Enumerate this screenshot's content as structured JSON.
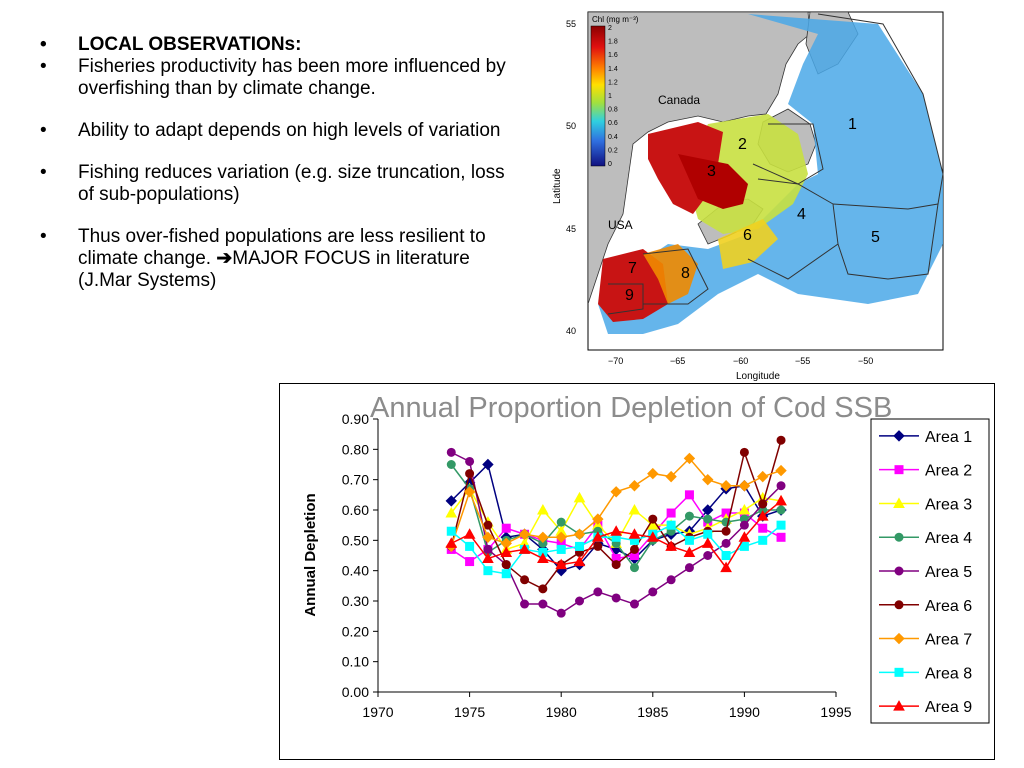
{
  "bullets": [
    {
      "text": "LOCAL OBSERVATIONs:",
      "bold": true
    },
    {
      "text": "Fisheries productivity has been more influenced by overfishing than by climate change."
    },
    {
      "text": "Ability to adapt depends on high levels of variation"
    },
    {
      "text": "Fishing reduces variation (e.g. size truncation, loss of sub-populations)"
    },
    {
      "text_before": "Thus over-fished populations are less resilient to climate change. ",
      "arrow": "➔",
      "text_after": "MAJOR FOCUS in literature (J.Mar Systems)"
    }
  ],
  "map": {
    "legend_title": "Chl (mg m⁻³)",
    "legend_ticks": [
      "2",
      "1.8",
      "1.6",
      "1.4",
      "1.2",
      "1",
      "0.8",
      "0.6",
      "0.4",
      "0.2",
      "0"
    ],
    "country_labels": [
      "Canada",
      "USA"
    ],
    "area_labels": [
      "1",
      "2",
      "3",
      "4",
      "5",
      "6",
      "7",
      "8",
      "9"
    ],
    "lat_ticks": [
      "55",
      "50",
      "45",
      "40"
    ],
    "lon_ticks": [
      "−70",
      "−65",
      "−60",
      "−55",
      "−50"
    ],
    "xlabel": "Longitude",
    "ylabel": "Latitude"
  },
  "chart_data": {
    "type": "line",
    "title": "Annual Proportion Depletion of Cod SSB",
    "xlabel": "",
    "ylabel": "Annual Depletion",
    "xlim": [
      1970,
      1995
    ],
    "ylim": [
      0,
      0.9
    ],
    "xticks": [
      "1970",
      "1975",
      "1980",
      "1985",
      "1990",
      "1995"
    ],
    "yticks": [
      "0.00",
      "0.10",
      "0.20",
      "0.30",
      "0.40",
      "0.50",
      "0.60",
      "0.70",
      "0.80",
      "0.90"
    ],
    "legend_position": "right",
    "series": [
      {
        "name": "Area 1",
        "color": "#000080",
        "marker": "diamond",
        "points": [
          [
            1974,
            0.63
          ],
          [
            1975,
            0.69
          ],
          [
            1976,
            0.75
          ],
          [
            1977,
            0.51
          ],
          [
            1978,
            0.52
          ],
          [
            1979,
            0.47
          ],
          [
            1980,
            0.4
          ],
          [
            1981,
            0.42
          ],
          [
            1982,
            0.49
          ],
          [
            1983,
            0.47
          ],
          [
            1984,
            0.44
          ],
          [
            1985,
            0.5
          ],
          [
            1986,
            0.52
          ],
          [
            1987,
            0.53
          ],
          [
            1988,
            0.6
          ],
          [
            1989,
            0.67
          ],
          [
            1990,
            0.68
          ],
          [
            1991,
            0.58
          ],
          [
            1992,
            0.6
          ]
        ]
      },
      {
        "name": "Area 2",
        "color": "#ff00ff",
        "marker": "square",
        "points": [
          [
            1974,
            0.47
          ],
          [
            1975,
            0.43
          ],
          [
            1976,
            0.47
          ],
          [
            1977,
            0.54
          ],
          [
            1978,
            0.52
          ],
          [
            1979,
            0.5
          ],
          [
            1980,
            0.49
          ],
          [
            1981,
            0.47
          ],
          [
            1982,
            0.55
          ],
          [
            1983,
            0.44
          ],
          [
            1984,
            0.45
          ],
          [
            1985,
            0.52
          ],
          [
            1986,
            0.59
          ],
          [
            1987,
            0.65
          ],
          [
            1988,
            0.56
          ],
          [
            1989,
            0.59
          ],
          [
            1990,
            0.59
          ],
          [
            1991,
            0.54
          ],
          [
            1992,
            0.51
          ]
        ]
      },
      {
        "name": "Area 3",
        "color": "#ffff00",
        "marker": "triangle",
        "points": [
          [
            1974,
            0.59
          ],
          [
            1975,
            0.67
          ],
          [
            1976,
            0.56
          ],
          [
            1977,
            0.47
          ],
          [
            1978,
            0.49
          ],
          [
            1979,
            0.6
          ],
          [
            1980,
            0.53
          ],
          [
            1981,
            0.64
          ],
          [
            1982,
            0.55
          ],
          [
            1983,
            0.49
          ],
          [
            1984,
            0.6
          ],
          [
            1985,
            0.55
          ],
          [
            1986,
            0.55
          ],
          [
            1987,
            0.52
          ],
          [
            1988,
            0.54
          ],
          [
            1989,
            0.57
          ],
          [
            1990,
            0.6
          ],
          [
            1991,
            0.64
          ],
          [
            1992,
            0.63
          ]
        ]
      },
      {
        "name": "Area 4",
        "color": "#339966",
        "marker": "circle",
        "points": [
          [
            1974,
            0.75
          ],
          [
            1975,
            0.67
          ],
          [
            1976,
            0.46
          ],
          [
            1977,
            0.5
          ],
          [
            1978,
            0.52
          ],
          [
            1979,
            0.49
          ],
          [
            1980,
            0.56
          ],
          [
            1981,
            0.52
          ],
          [
            1982,
            0.53
          ],
          [
            1983,
            0.49
          ],
          [
            1984,
            0.41
          ],
          [
            1985,
            0.5
          ],
          [
            1986,
            0.53
          ],
          [
            1987,
            0.58
          ],
          [
            1988,
            0.57
          ],
          [
            1989,
            0.56
          ],
          [
            1990,
            0.57
          ],
          [
            1991,
            0.6
          ],
          [
            1992,
            0.6
          ]
        ]
      },
      {
        "name": "Area 5",
        "color": "#800080",
        "marker": "circle",
        "points": [
          [
            1974,
            0.79
          ],
          [
            1975,
            0.76
          ],
          [
            1976,
            0.47
          ],
          [
            1977,
            0.42
          ],
          [
            1978,
            0.29
          ],
          [
            1979,
            0.29
          ],
          [
            1980,
            0.26
          ],
          [
            1981,
            0.3
          ],
          [
            1982,
            0.33
          ],
          [
            1983,
            0.31
          ],
          [
            1984,
            0.29
          ],
          [
            1985,
            0.33
          ],
          [
            1986,
            0.37
          ],
          [
            1987,
            0.41
          ],
          [
            1988,
            0.45
          ],
          [
            1989,
            0.49
          ],
          [
            1990,
            0.55
          ],
          [
            1991,
            0.62
          ],
          [
            1992,
            0.68
          ]
        ]
      },
      {
        "name": "Area 6",
        "color": "#800000",
        "marker": "circle",
        "points": [
          [
            1974,
            0.48
          ],
          [
            1975,
            0.72
          ],
          [
            1976,
            0.55
          ],
          [
            1977,
            0.42
          ],
          [
            1978,
            0.37
          ],
          [
            1979,
            0.34
          ],
          [
            1980,
            0.42
          ],
          [
            1981,
            0.46
          ],
          [
            1982,
            0.48
          ],
          [
            1983,
            0.42
          ],
          [
            1984,
            0.47
          ],
          [
            1985,
            0.57
          ],
          [
            1986,
            0.48
          ],
          [
            1987,
            0.51
          ],
          [
            1988,
            0.53
          ],
          [
            1989,
            0.53
          ],
          [
            1990,
            0.79
          ],
          [
            1991,
            0.62
          ],
          [
            1992,
            0.83
          ]
        ]
      },
      {
        "name": "Area 7",
        "color": "#ff9900",
        "marker": "diamond",
        "points": [
          [
            1974,
            0.48
          ],
          [
            1975,
            0.66
          ],
          [
            1976,
            0.51
          ],
          [
            1977,
            0.49
          ],
          [
            1978,
            0.52
          ],
          [
            1979,
            0.51
          ],
          [
            1980,
            0.51
          ],
          [
            1981,
            0.52
          ],
          [
            1982,
            0.57
          ],
          [
            1983,
            0.66
          ],
          [
            1984,
            0.68
          ],
          [
            1985,
            0.72
          ],
          [
            1986,
            0.71
          ],
          [
            1987,
            0.77
          ],
          [
            1988,
            0.7
          ],
          [
            1989,
            0.68
          ],
          [
            1990,
            0.68
          ],
          [
            1991,
            0.71
          ],
          [
            1992,
            0.73
          ]
        ]
      },
      {
        "name": "Area 8",
        "color": "#00ffff",
        "marker": "square",
        "points": [
          [
            1974,
            0.53
          ],
          [
            1975,
            0.48
          ],
          [
            1976,
            0.4
          ],
          [
            1977,
            0.39
          ],
          [
            1978,
            0.47
          ],
          [
            1979,
            0.46
          ],
          [
            1980,
            0.47
          ],
          [
            1981,
            0.48
          ],
          [
            1982,
            0.51
          ],
          [
            1983,
            0.51
          ],
          [
            1984,
            0.5
          ],
          [
            1985,
            0.52
          ],
          [
            1986,
            0.55
          ],
          [
            1987,
            0.5
          ],
          [
            1988,
            0.52
          ],
          [
            1989,
            0.45
          ],
          [
            1990,
            0.48
          ],
          [
            1991,
            0.5
          ],
          [
            1992,
            0.55
          ]
        ]
      },
      {
        "name": "Area 9",
        "color": "#ff0000",
        "marker": "triangle",
        "points": [
          [
            1974,
            0.49
          ],
          [
            1975,
            0.52
          ],
          [
            1976,
            0.44
          ],
          [
            1977,
            0.46
          ],
          [
            1978,
            0.47
          ],
          [
            1979,
            0.44
          ],
          [
            1980,
            0.42
          ],
          [
            1981,
            0.43
          ],
          [
            1982,
            0.51
          ],
          [
            1983,
            0.53
          ],
          [
            1984,
            0.52
          ],
          [
            1985,
            0.51
          ],
          [
            1986,
            0.48
          ],
          [
            1987,
            0.46
          ],
          [
            1988,
            0.49
          ],
          [
            1989,
            0.41
          ],
          [
            1990,
            0.51
          ],
          [
            1991,
            0.58
          ],
          [
            1992,
            0.63
          ]
        ]
      }
    ]
  }
}
